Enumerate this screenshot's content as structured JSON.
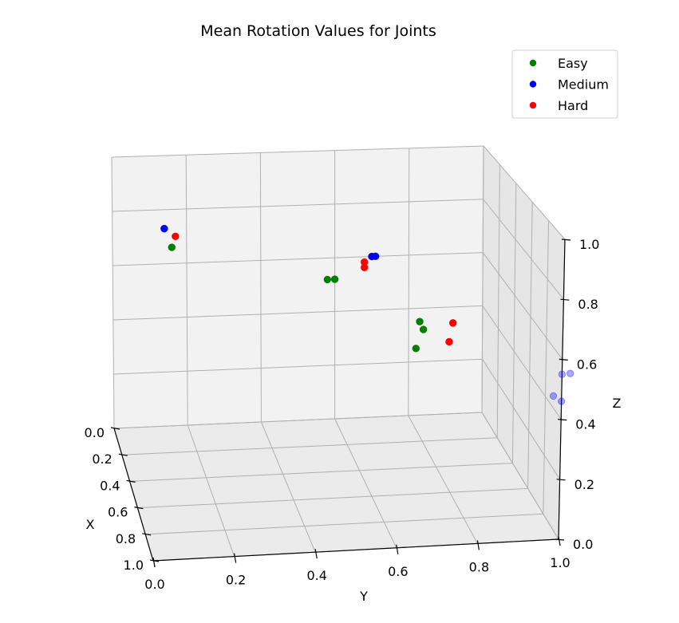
{
  "chart_data": {
    "type": "scatter",
    "title": "Mean Rotation Values for Joints",
    "xlabel": "X",
    "ylabel": "Y",
    "zlabel": "Z",
    "xlim": [
      0,
      1
    ],
    "ylim": [
      0,
      1
    ],
    "zlim": [
      0,
      1
    ],
    "xticks": [
      "0.0",
      "0.2",
      "0.4",
      "0.6",
      "0.8",
      "1.0"
    ],
    "yticks": [
      "0.0",
      "0.2",
      "0.4",
      "0.6",
      "0.8",
      "1.0"
    ],
    "zticks": [
      "0.0",
      "0.2",
      "0.4",
      "0.6",
      "0.8",
      "1.0"
    ],
    "grid": true,
    "legend_position": "top-right",
    "series": [
      {
        "name": "Easy",
        "color": "#008000",
        "points": [
          {
            "x": 0.0,
            "y": 0.16,
            "z": 0.66
          },
          {
            "x": 0.0,
            "y": 0.58,
            "z": 0.52
          },
          {
            "x": 0.0,
            "y": 0.6,
            "z": 0.52
          },
          {
            "x": 0.0,
            "y": 0.83,
            "z": 0.35
          },
          {
            "x": 0.0,
            "y": 0.84,
            "z": 0.32
          },
          {
            "x": 0.0,
            "y": 0.82,
            "z": 0.25
          }
        ]
      },
      {
        "name": "Medium",
        "color": "#0000ff",
        "points": [
          {
            "x": 0.0,
            "y": 0.14,
            "z": 0.73
          },
          {
            "x": 0.0,
            "y": 0.7,
            "z": 0.6
          },
          {
            "x": 0.0,
            "y": 0.71,
            "z": 0.6
          },
          {
            "x": 1.0,
            "y": 1.0,
            "z": 0.55
          },
          {
            "x": 1.0,
            "y": 1.02,
            "z": 0.55
          },
          {
            "x": 1.0,
            "y": 0.98,
            "z": 0.48
          },
          {
            "x": 1.0,
            "y": 1.0,
            "z": 0.46
          }
        ]
      },
      {
        "name": "Hard",
        "color": "#ff0000",
        "points": [
          {
            "x": 0.0,
            "y": 0.17,
            "z": 0.7
          },
          {
            "x": 0.0,
            "y": 0.68,
            "z": 0.58
          },
          {
            "x": 0.0,
            "y": 0.68,
            "z": 0.56
          },
          {
            "x": 0.0,
            "y": 0.92,
            "z": 0.34
          },
          {
            "x": 0.0,
            "y": 0.91,
            "z": 0.27
          }
        ]
      }
    ]
  }
}
